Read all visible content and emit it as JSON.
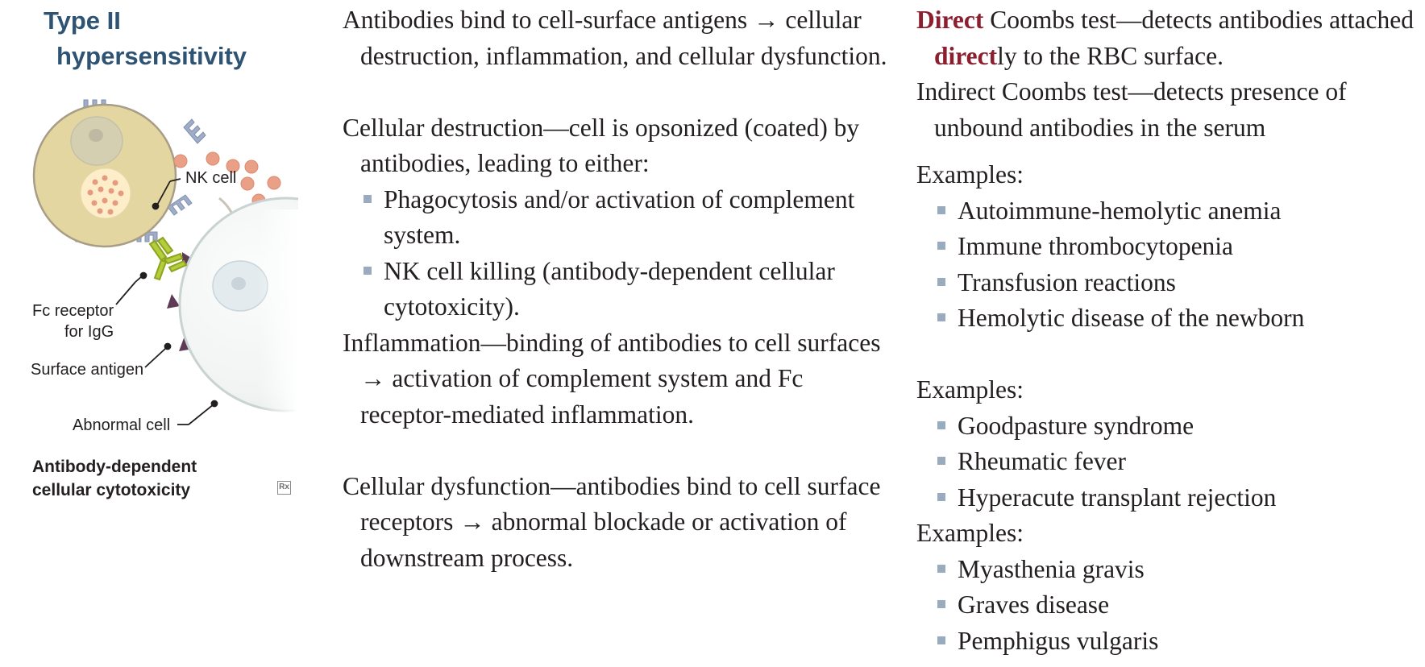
{
  "title": {
    "line1": "Type II",
    "line2": "hypersensitivity"
  },
  "diagram": {
    "labels": {
      "nk_cell": "NK cell",
      "fc_receptor_1": "Fc receptor",
      "fc_receptor_2": "for IgG",
      "surface_antigen": "Surface antigen",
      "abnormal_cell": "Abnormal cell"
    },
    "caption": {
      "line1": "Antibody-dependent",
      "line2": "cellular cytotoxicity"
    },
    "logo": "Rx"
  },
  "mechanisms": {
    "intro": "Antibodies bind to cell-surface antigens → cellular destruction, inflammation, and cellular dysfunction.",
    "destruction": {
      "text": "Cellular destruction—cell is opsonized (coated) by antibodies, leading to either:",
      "bullets": [
        "Phagocytosis and/or activation of complement system.",
        "NK cell killing (antibody-dependent cellular cytotoxicity)."
      ]
    },
    "inflammation": "Inflammation—binding of antibodies to cell surfaces → activation of complement system and Fc receptor-mediated inflammation.",
    "dysfunction": "Cellular dysfunction—antibodies bind to cell surface receptors → abnormal blockade or activation of downstream process."
  },
  "coombs": {
    "direct": {
      "highlight": "Direct",
      "text1": " Coombs test—detects antibodies attached ",
      "highlight2": "direct",
      "text2": "ly to the RBC surface."
    },
    "indirect": "Indirect Coombs test—detects presence of unbound antibodies in the serum"
  },
  "examples": {
    "label": "Examples:",
    "destruction": [
      "Autoimmune-hemolytic anemia",
      "Immune thrombocytopenia",
      "Transfusion reactions",
      "Hemolytic disease of the newborn"
    ],
    "inflammation": [
      "Goodpasture syndrome",
      "Rheumatic fever",
      "Hyperacute transplant rejection"
    ],
    "dysfunction": [
      "Myasthenia gravis",
      "Graves disease",
      "Pemphigus vulgaris"
    ]
  },
  "colors": {
    "title": "#2f5373",
    "highlight": "#8b1e2f",
    "bullet": "#9aabc0",
    "nk_cell": "#e3d6a0",
    "receptor": "#9fadc8",
    "antibody": "#b2ce3a",
    "antigen": "#5e3a57",
    "granule": "#e7967a"
  }
}
